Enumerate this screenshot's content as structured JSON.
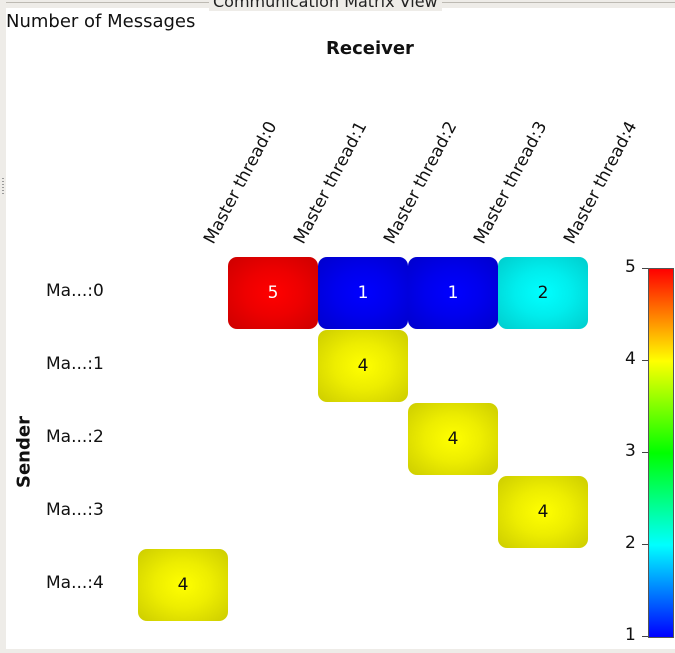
{
  "window": {
    "title": "Communication Matrix View"
  },
  "metric_label": "Number of Messages",
  "chart_data": {
    "type": "heatmap",
    "xlabel": "Receiver",
    "ylabel": "Sender",
    "columns": [
      "Master thread:0",
      "Master thread:1",
      "Master thread:2",
      "Master thread:3",
      "Master thread:4"
    ],
    "rows": [
      "Ma...:0",
      "Ma...:1",
      "Ma...:2",
      "Ma...:3",
      "Ma...:4"
    ],
    "cells": [
      {
        "row": 0,
        "col": 1,
        "value": 5
      },
      {
        "row": 0,
        "col": 2,
        "value": 1
      },
      {
        "row": 0,
        "col": 3,
        "value": 1
      },
      {
        "row": 0,
        "col": 4,
        "value": 2
      },
      {
        "row": 1,
        "col": 2,
        "value": 4
      },
      {
        "row": 2,
        "col": 3,
        "value": 4
      },
      {
        "row": 3,
        "col": 4,
        "value": 4
      },
      {
        "row": 4,
        "col": 0,
        "value": 4
      }
    ],
    "colorbar": {
      "min": 1,
      "max": 5,
      "ticks": [
        "1",
        "2",
        "3",
        "4",
        "5"
      ],
      "colors": [
        "#0000ff",
        "#00ffff",
        "#00ff00",
        "#ffff00",
        "#ff0000"
      ]
    }
  }
}
